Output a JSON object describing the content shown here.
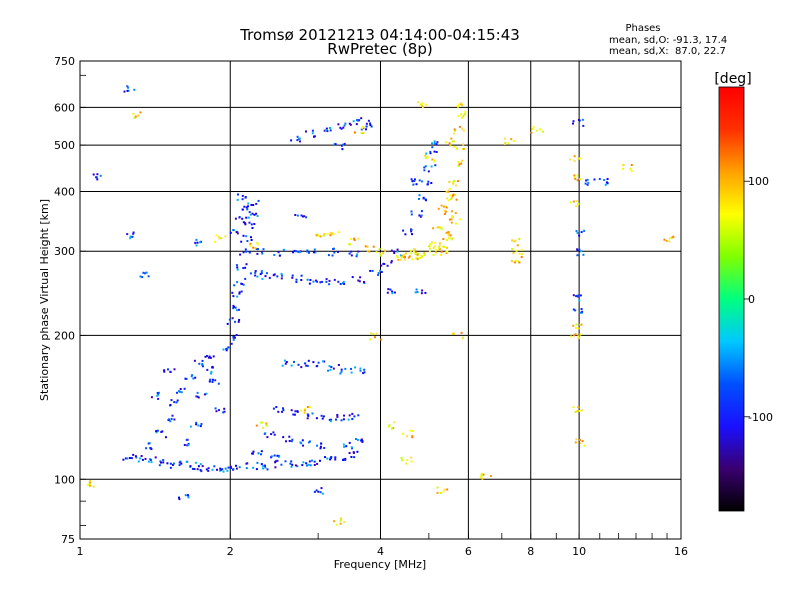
{
  "chart_data": {
    "type": "scatter",
    "title": "Tromsø 20121213 04:14:00-04:15:43",
    "subtitle": "RwPretec (8p)",
    "xlabel": "Frequency [MHz]",
    "ylabel": "Stationary phase Virtual Height [km]",
    "x_scale": "log",
    "y_scale": "log",
    "xlim": [
      1,
      16
    ],
    "ylim": [
      75,
      750
    ],
    "x_ticks": [
      1,
      2,
      4,
      6,
      8,
      10,
      16
    ],
    "x_tick_labels": [
      "1",
      "2",
      "4",
      "6",
      "8",
      "10",
      "16"
    ],
    "y_ticks": [
      75,
      100,
      200,
      300,
      400,
      500,
      600,
      750
    ],
    "y_tick_labels": [
      "75",
      "100",
      "200",
      "300",
      "400",
      "500",
      "600",
      "750"
    ],
    "grid": true,
    "stats": {
      "header": "Phases",
      "line_o": "mean, sd,O: -91.3, 17.4",
      "line_x": "mean, sd,X:  87.0, 22.7"
    },
    "colorbar": {
      "label": "[deg]",
      "min": -180,
      "max": 180,
      "ticks": [
        100,
        0,
        -100
      ],
      "tick_labels": [
        "100",
        "0",
        "-100"
      ],
      "colors": [
        "#000000",
        "#3a0070",
        "#1a10ff",
        "#0050ff",
        "#00c8ff",
        "#00ff80",
        "#80ff00",
        "#ffff00",
        "#ffa000",
        "#ff3000",
        "#ff0000"
      ]
    },
    "series": [
      {
        "mode": "O",
        "points": [
          [
            1.25,
            112
          ],
          [
            1.3,
            111
          ],
          [
            1.38,
            110
          ],
          [
            1.46,
            109
          ],
          [
            1.55,
            108
          ],
          [
            1.62,
            108
          ],
          [
            1.7,
            107
          ],
          [
            1.78,
            106
          ],
          [
            1.86,
            106
          ],
          [
            1.95,
            106
          ],
          [
            2.05,
            106
          ],
          [
            2.2,
            107
          ],
          [
            2.35,
            107
          ],
          [
            2.5,
            108
          ],
          [
            2.65,
            108
          ],
          [
            2.8,
            109
          ],
          [
            2.95,
            109
          ],
          [
            3.1,
            110
          ],
          [
            3.3,
            111
          ],
          [
            3.5,
            113
          ],
          [
            1.35,
            118
          ],
          [
            1.45,
            125
          ],
          [
            1.5,
            135
          ],
          [
            1.55,
            145
          ],
          [
            1.6,
            155
          ],
          [
            1.65,
            165
          ],
          [
            1.72,
            175
          ],
          [
            1.8,
            182
          ],
          [
            1.85,
            160
          ],
          [
            1.9,
            140
          ],
          [
            1.95,
            190
          ],
          [
            2.0,
            200
          ],
          [
            2.02,
            215
          ],
          [
            2.04,
            230
          ],
          [
            2.06,
            245
          ],
          [
            2.08,
            260
          ],
          [
            2.1,
            280
          ],
          [
            2.12,
            300
          ],
          [
            2.15,
            320
          ],
          [
            2.18,
            340
          ],
          [
            2.2,
            360
          ],
          [
            2.22,
            380
          ],
          [
            2.25,
            270
          ],
          [
            2.35,
            268
          ],
          [
            2.5,
            266
          ],
          [
            2.7,
            264
          ],
          [
            2.9,
            262
          ],
          [
            3.1,
            260
          ],
          [
            3.3,
            259
          ],
          [
            3.6,
            262
          ],
          [
            3.9,
            270
          ],
          [
            4.1,
            285
          ],
          [
            4.3,
            300
          ],
          [
            4.5,
            330
          ],
          [
            4.7,
            360
          ],
          [
            4.8,
            390
          ],
          [
            4.9,
            420
          ],
          [
            5.0,
            450
          ],
          [
            5.05,
            490
          ],
          [
            5.1,
            510
          ],
          [
            2.3,
            300
          ],
          [
            2.5,
            300
          ],
          [
            2.7,
            300
          ],
          [
            2.9,
            300
          ],
          [
            3.2,
            300
          ],
          [
            3.5,
            298
          ],
          [
            2.7,
            520
          ],
          [
            2.9,
            530
          ],
          [
            3.1,
            540
          ],
          [
            3.3,
            550
          ],
          [
            3.5,
            560
          ],
          [
            3.7,
            565
          ],
          [
            2.6,
            175
          ],
          [
            2.8,
            175
          ],
          [
            3.0,
            175
          ],
          [
            3.2,
            172
          ],
          [
            3.4,
            170
          ],
          [
            3.6,
            170
          ],
          [
            2.5,
            140
          ],
          [
            2.7,
            138
          ],
          [
            2.9,
            136
          ],
          [
            3.1,
            135
          ],
          [
            3.3,
            135
          ],
          [
            3.5,
            136
          ],
          [
            3.6,
            120
          ],
          [
            3.4,
            118
          ],
          [
            2.4,
            125
          ],
          [
            2.6,
            122
          ],
          [
            2.8,
            120
          ],
          [
            3.0,
            118
          ],
          [
            2.25,
            115
          ],
          [
            2.45,
            112
          ],
          [
            1.6,
            120
          ],
          [
            1.7,
            130
          ],
          [
            1.75,
            150
          ],
          [
            1.8,
            170
          ],
          [
            1.4,
            150
          ],
          [
            1.5,
            170
          ],
          [
            1.25,
            660
          ],
          [
            1.25,
            325
          ],
          [
            1.08,
            430
          ],
          [
            1.35,
            270
          ],
          [
            1.7,
            315
          ],
          [
            2.75,
            360
          ],
          [
            3.3,
            500
          ],
          [
            3.75,
            550
          ],
          [
            4.2,
            250
          ],
          [
            4.6,
            420
          ],
          [
            9.95,
            330
          ],
          [
            9.9,
            225
          ],
          [
            9.9,
            240
          ],
          [
            9.9,
            300
          ],
          [
            9.9,
            560
          ],
          [
            10.5,
            420
          ],
          [
            11.2,
            420
          ],
          [
            4.8,
            250
          ],
          [
            3.0,
            95
          ],
          [
            1.6,
            92
          ],
          [
            2.1,
            390
          ],
          [
            2.15,
            370
          ],
          [
            2.1,
            350
          ],
          [
            2.05,
            330
          ]
        ]
      },
      {
        "mode": "X",
        "points": [
          [
            4.4,
            290
          ],
          [
            4.6,
            292
          ],
          [
            4.8,
            295
          ],
          [
            5.0,
            300
          ],
          [
            5.2,
            305
          ],
          [
            5.3,
            310
          ],
          [
            5.4,
            330
          ],
          [
            5.5,
            360
          ],
          [
            5.55,
            390
          ],
          [
            5.6,
            420
          ],
          [
            5.65,
            460
          ],
          [
            5.7,
            500
          ],
          [
            5.72,
            540
          ],
          [
            5.75,
            580
          ],
          [
            5.78,
            610
          ],
          [
            5.4,
            300
          ],
          [
            5.45,
            320
          ],
          [
            5.6,
            350
          ],
          [
            4.5,
            295
          ],
          [
            4.7,
            300
          ],
          [
            5.1,
            310
          ],
          [
            5.2,
            340
          ],
          [
            5.3,
            370
          ],
          [
            5.5,
            400
          ],
          [
            4.2,
            130
          ],
          [
            4.5,
            125
          ],
          [
            4.5,
            110
          ],
          [
            5.3,
            95
          ],
          [
            3.9,
            200
          ],
          [
            5.0,
            470
          ],
          [
            5.5,
            510
          ],
          [
            3.0,
            325
          ],
          [
            3.2,
            330
          ],
          [
            3.5,
            315
          ],
          [
            3.8,
            305
          ],
          [
            4.0,
            300
          ],
          [
            9.9,
            140
          ],
          [
            9.95,
            120
          ],
          [
            7.5,
            300
          ],
          [
            7.5,
            290
          ],
          [
            7.5,
            315
          ],
          [
            8.2,
            540
          ],
          [
            7.2,
            510
          ],
          [
            9.8,
            430
          ],
          [
            9.8,
            470
          ],
          [
            9.8,
            380
          ],
          [
            9.8,
            210
          ],
          [
            9.8,
            200
          ],
          [
            6.5,
            102
          ],
          [
            12.5,
            450
          ],
          [
            15.0,
            320
          ],
          [
            2.3,
            130
          ],
          [
            2.8,
            140
          ],
          [
            3.3,
            82
          ],
          [
            1.05,
            98
          ],
          [
            1.3,
            580
          ],
          [
            1.9,
            320
          ],
          [
            4.85,
            610
          ],
          [
            5.7,
            200
          ],
          [
            3.6,
            540
          ],
          [
            2.2,
            310
          ]
        ]
      }
    ]
  }
}
